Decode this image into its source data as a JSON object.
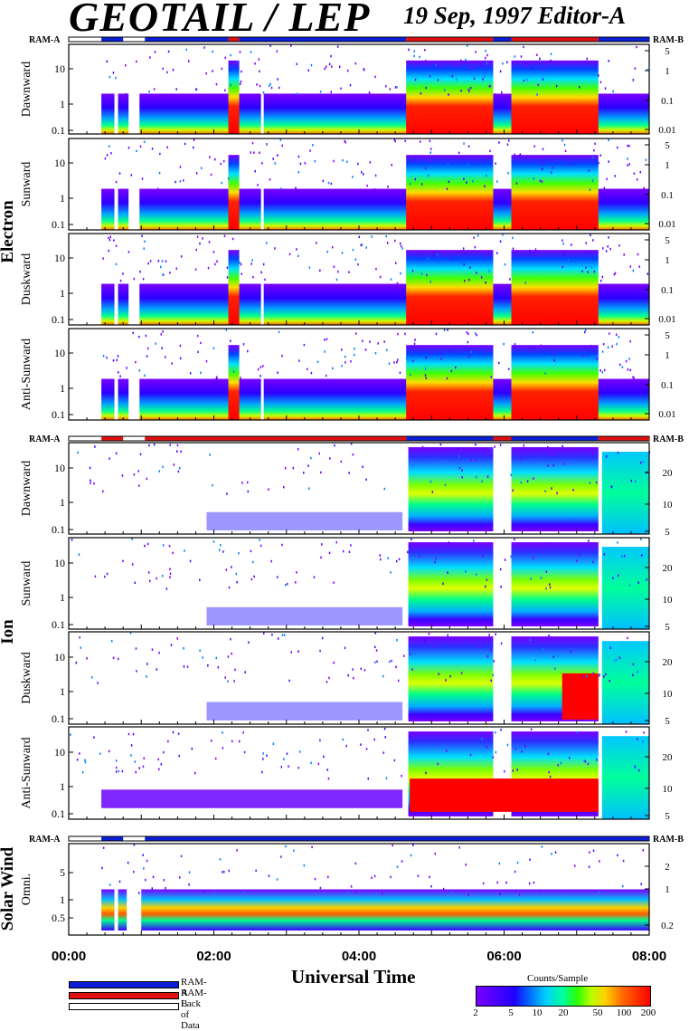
{
  "header": {
    "title": "GEOTAIL / LEP",
    "date_editor": "19 Sep, 1997   Editor-A"
  },
  "status_labels": {
    "left": "RAM-A",
    "right": "RAM-B"
  },
  "colors": {
    "ram_a": "#0a1fd6",
    "ram_b": "#e01010",
    "lack_of_data": "#ffffff"
  },
  "groups": [
    {
      "label": "Electron",
      "panels": [
        "Dawnward",
        "Sunward",
        "Duskward",
        "Anti-Sunward"
      ]
    },
    {
      "label": "Ion",
      "panels": [
        "Dawnward",
        "Sunward",
        "Duskward",
        "Anti-Sunward"
      ]
    },
    {
      "label": "Solar Wind",
      "panels": [
        "Omni."
      ]
    }
  ],
  "chart_data": {
    "type": "heatmap",
    "x_axis": {
      "label": "Universal Time",
      "tick_labels": [
        "00:00",
        "02:00",
        "04:00",
        "06:00",
        "08:00"
      ],
      "range_hours": [
        0,
        8
      ]
    },
    "electron": {
      "left_axis": {
        "tick_labels": [
          "0.1",
          "1",
          "10"
        ],
        "scale": "log"
      },
      "right_axis": {
        "tick_labels": [
          "0.01",
          "0.1",
          "1",
          "5"
        ],
        "scale": "log"
      }
    },
    "ion": {
      "left_axis": {
        "tick_labels": [
          "0.1",
          "1",
          "10"
        ],
        "scale": "log"
      },
      "right_axis": {
        "tick_labels": [
          "5",
          "10",
          "20"
        ],
        "scale": "log"
      }
    },
    "solar_wind": {
      "left_axis": {
        "tick_labels": [
          "0.5",
          "1",
          "5"
        ],
        "scale": "log"
      },
      "right_axis": {
        "tick_labels": [
          "0.2",
          "1",
          "2"
        ],
        "scale": "log"
      }
    },
    "mode_segments_electron": [
      {
        "mode": "lack",
        "start": 0.0,
        "end": 0.45
      },
      {
        "mode": "ram_a",
        "start": 0.45,
        "end": 0.75
      },
      {
        "mode": "lack",
        "start": 0.75,
        "end": 1.05
      },
      {
        "mode": "ram_a",
        "start": 1.05,
        "end": 2.2
      },
      {
        "mode": "ram_b",
        "start": 2.2,
        "end": 2.35
      },
      {
        "mode": "ram_a",
        "start": 2.35,
        "end": 4.65
      },
      {
        "mode": "ram_b",
        "start": 4.65,
        "end": 5.85
      },
      {
        "mode": "ram_a",
        "start": 5.85,
        "end": 6.1
      },
      {
        "mode": "ram_b",
        "start": 6.1,
        "end": 7.3
      },
      {
        "mode": "ram_a",
        "start": 7.3,
        "end": 8.0
      }
    ],
    "mode_segments_ion": [
      {
        "mode": "lack",
        "start": 0.0,
        "end": 0.45
      },
      {
        "mode": "ram_b",
        "start": 0.45,
        "end": 0.75
      },
      {
        "mode": "lack",
        "start": 0.75,
        "end": 1.05
      },
      {
        "mode": "ram_b",
        "start": 1.05,
        "end": 4.65
      },
      {
        "mode": "ram_a",
        "start": 4.65,
        "end": 5.85
      },
      {
        "mode": "ram_b",
        "start": 5.85,
        "end": 6.1
      },
      {
        "mode": "ram_a",
        "start": 6.1,
        "end": 7.3
      },
      {
        "mode": "ram_b",
        "start": 7.3,
        "end": 8.0
      }
    ],
    "mode_segments_solar_wind": [
      {
        "mode": "lack",
        "start": 0.0,
        "end": 0.45
      },
      {
        "mode": "ram_a",
        "start": 0.45,
        "end": 0.75
      },
      {
        "mode": "lack",
        "start": 0.75,
        "end": 1.05
      },
      {
        "mode": "ram_a",
        "start": 1.05,
        "end": 8.0
      }
    ],
    "colorbar": {
      "title": "Counts/Sample",
      "tick_labels": [
        "2",
        "5",
        "10",
        "20",
        "50",
        "100",
        "200"
      ],
      "scale": "log"
    }
  },
  "legend": [
    {
      "label": "RAM-A",
      "color": "#0a1fd6"
    },
    {
      "label": "RAM-B",
      "color": "#e01010"
    },
    {
      "label": "Lack of Data",
      "color": "#ffffff"
    }
  ]
}
